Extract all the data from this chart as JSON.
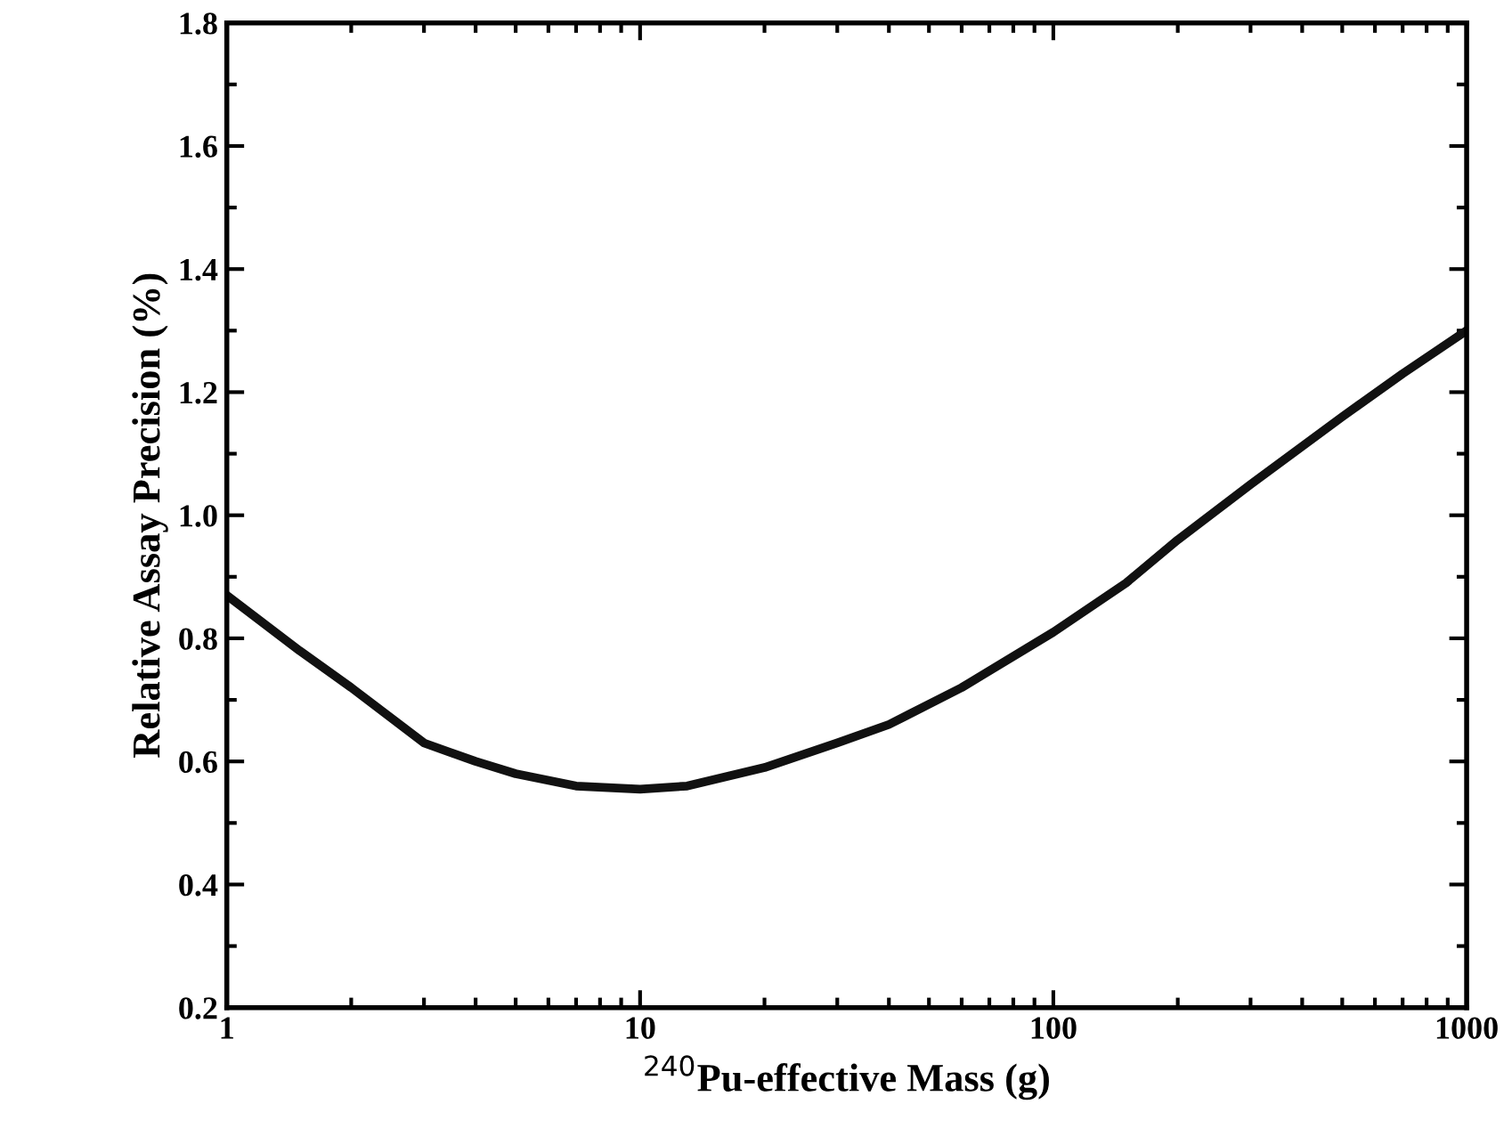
{
  "chart_data": {
    "type": "line",
    "xlabel": "$^{240}$Pu-effective Mass (g)",
    "ylabel": "Relative Assay Precision (%)",
    "log": "x",
    "x": [
      1,
      1.5,
      2,
      3,
      4,
      5,
      7,
      10,
      13,
      20,
      30,
      40,
      60,
      100,
      150,
      200,
      300,
      500,
      700,
      1000
    ],
    "series": [
      {
        "color": "#111111",
        "values": [
          0.87,
          0.78,
          0.72,
          0.63,
          0.6,
          0.58,
          0.56,
          0.555,
          0.56,
          0.59,
          0.63,
          0.66,
          0.72,
          0.81,
          0.89,
          0.96,
          1.05,
          1.16,
          1.23,
          1.3
        ]
      }
    ],
    "xlim": [
      1,
      1000
    ],
    "ylim": [
      0.2,
      1.8
    ],
    "xticks": [
      1,
      10,
      100,
      1000
    ],
    "yticks": [
      0.2,
      0.4,
      0.6,
      0.8,
      {
        "value": 1,
        "label": "1.0"
      },
      1.2,
      1.4,
      1.6,
      1.8
    ],
    "grid": false,
    "marker": "none",
    "line_style": "solid"
  }
}
